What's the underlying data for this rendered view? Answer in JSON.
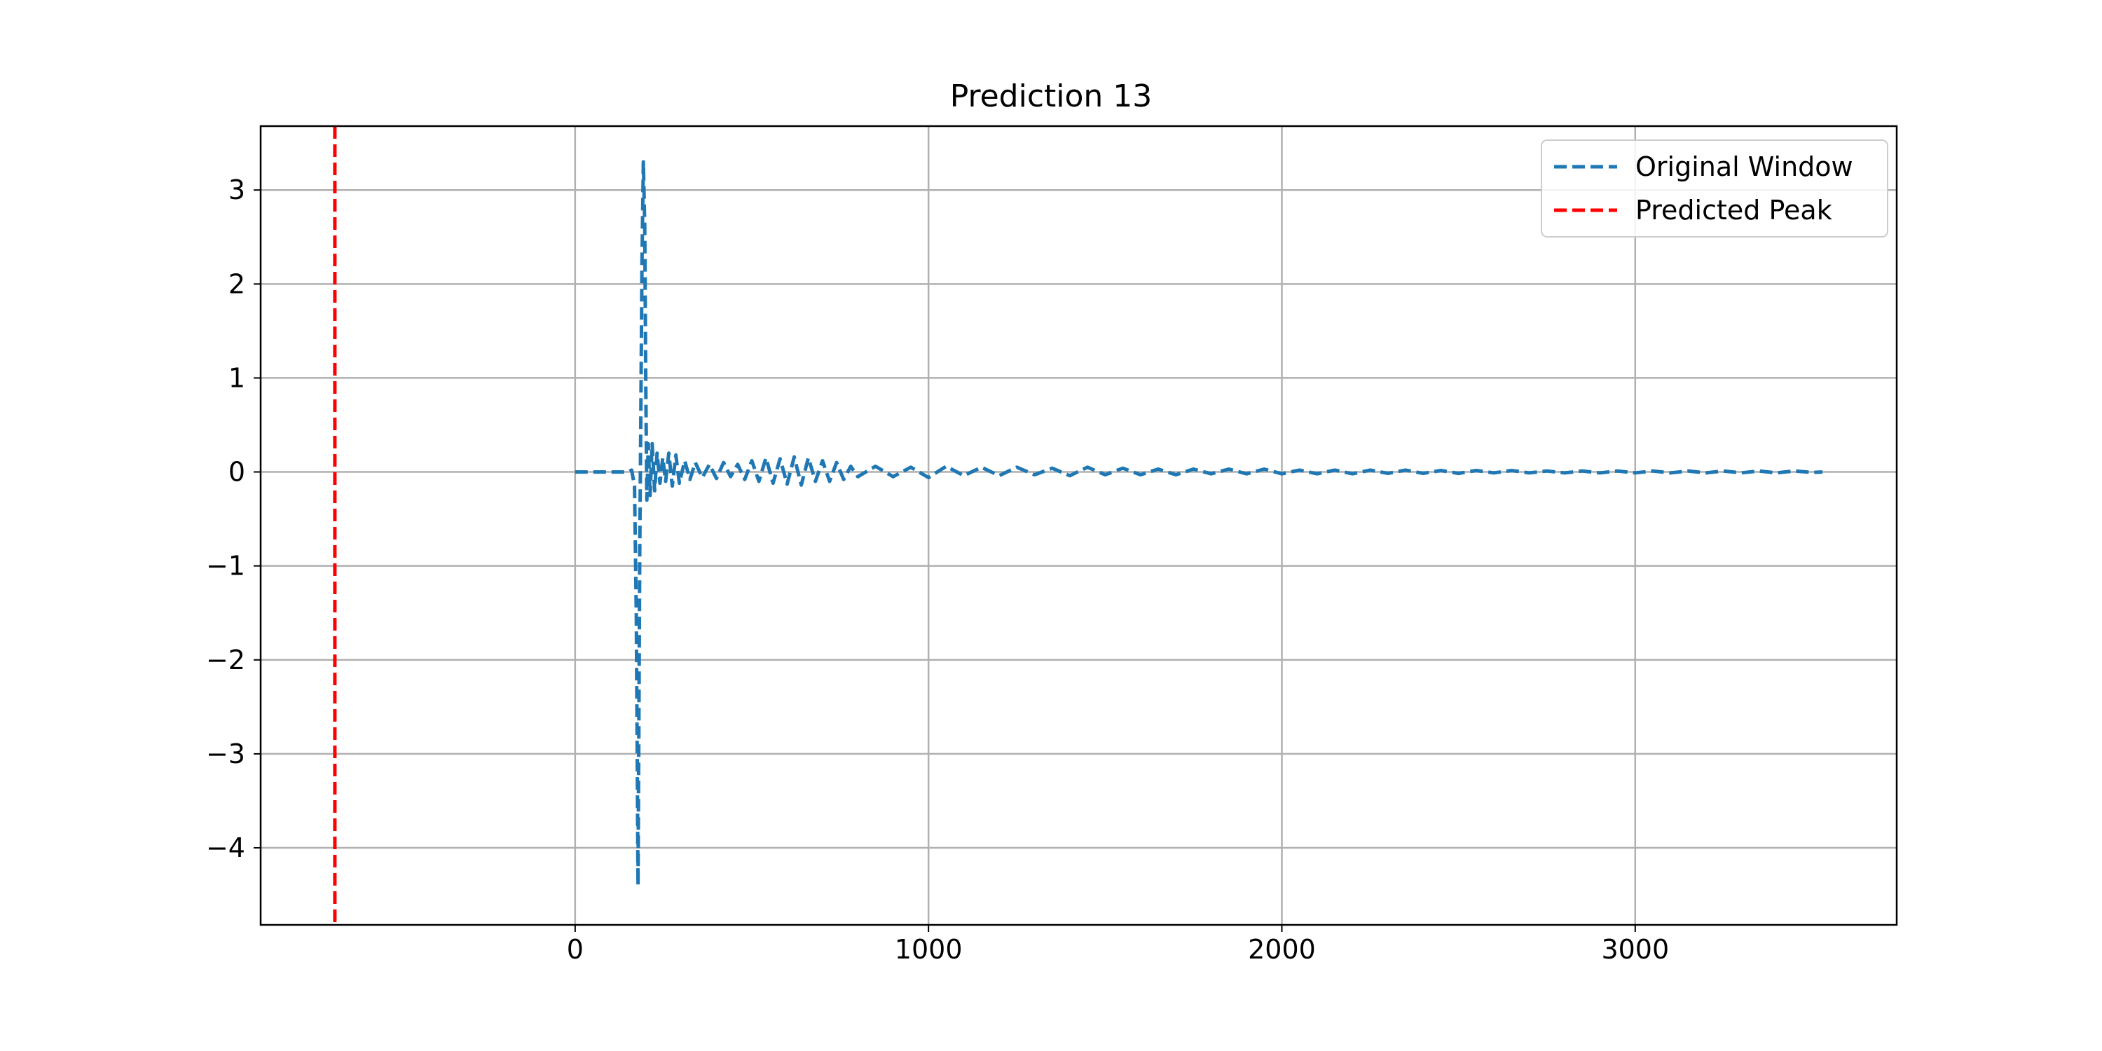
{
  "chart_data": {
    "type": "line",
    "title": "Prediction 13",
    "xlabel": "",
    "ylabel": "",
    "xlim": [
      -890,
      3740
    ],
    "ylim": [
      -4.82,
      3.68
    ],
    "xticks": [
      0,
      1000,
      2000,
      3000
    ],
    "xtick_labels": [
      "0",
      "1000",
      "2000",
      "3000"
    ],
    "yticks": [
      3,
      2,
      1,
      0,
      -1,
      -2,
      -3,
      -4
    ],
    "ytick_labels": [
      "3",
      "2",
      "1",
      "0",
      "−1",
      "−2",
      "−3",
      "−4"
    ],
    "grid": true,
    "legend_position": "top-right",
    "series": [
      {
        "name": "Original Window",
        "color": "#1f77b4",
        "style": "dashed",
        "x": [
          0,
          150,
          160,
          168,
          173,
          176,
          178,
          180,
          183,
          186,
          189,
          193,
          197,
          200,
          203,
          207,
          212,
          218,
          225,
          232,
          240,
          248,
          256,
          265,
          275,
          285,
          295,
          310,
          325,
          340,
          360,
          380,
          400,
          420,
          440,
          460,
          480,
          500,
          520,
          540,
          560,
          580,
          600,
          620,
          640,
          660,
          680,
          700,
          720,
          740,
          760,
          780,
          800,
          850,
          900,
          950,
          1000,
          1050,
          1100,
          1150,
          1200,
          1250,
          1300,
          1350,
          1400,
          1450,
          1500,
          1550,
          1600,
          1650,
          1700,
          1750,
          1800,
          1850,
          1900,
          1950,
          2000,
          2050,
          2100,
          2150,
          2200,
          2250,
          2300,
          2350,
          2400,
          2450,
          2500,
          2550,
          2600,
          2650,
          2700,
          2750,
          2800,
          2850,
          2900,
          2950,
          3000,
          3050,
          3100,
          3150,
          3200,
          3250,
          3300,
          3350,
          3400,
          3450,
          3500,
          3530
        ],
        "y": [
          0,
          0,
          0.02,
          -0.15,
          -1.5,
          -3.2,
          -4.4,
          -3.0,
          -0.8,
          0.6,
          2.2,
          3.3,
          2.6,
          0.9,
          -0.3,
          0.3,
          -0.25,
          0.3,
          -0.2,
          0.2,
          -0.12,
          0.15,
          -0.1,
          0.2,
          -0.15,
          0.18,
          -0.12,
          0.12,
          -0.08,
          0.1,
          -0.06,
          0.08,
          -0.07,
          0.1,
          -0.05,
          0.08,
          -0.08,
          0.12,
          -0.1,
          0.15,
          -0.12,
          0.14,
          -0.13,
          0.16,
          -0.14,
          0.15,
          -0.1,
          0.12,
          -0.1,
          0.1,
          -0.08,
          0.06,
          -0.05,
          0.06,
          -0.05,
          0.05,
          -0.06,
          0.06,
          -0.04,
          0.05,
          -0.04,
          0.05,
          -0.03,
          0.04,
          -0.04,
          0.05,
          -0.03,
          0.04,
          -0.03,
          0.03,
          -0.03,
          0.03,
          -0.02,
          0.03,
          -0.02,
          0.03,
          -0.02,
          0.02,
          -0.02,
          0.02,
          -0.02,
          0.02,
          -0.015,
          0.02,
          -0.015,
          0.015,
          -0.015,
          0.015,
          -0.01,
          0.015,
          -0.01,
          0.01,
          -0.01,
          0.01,
          -0.01,
          0.01,
          -0.01,
          0.01,
          -0.01,
          0.01,
          -0.01,
          0.01,
          -0.01,
          0.01,
          -0.01,
          0.01,
          -0.005,
          0
        ]
      },
      {
        "name": "Predicted Peak",
        "color": "#ff0000",
        "style": "dashed",
        "type": "vline",
        "x": -680
      }
    ]
  }
}
